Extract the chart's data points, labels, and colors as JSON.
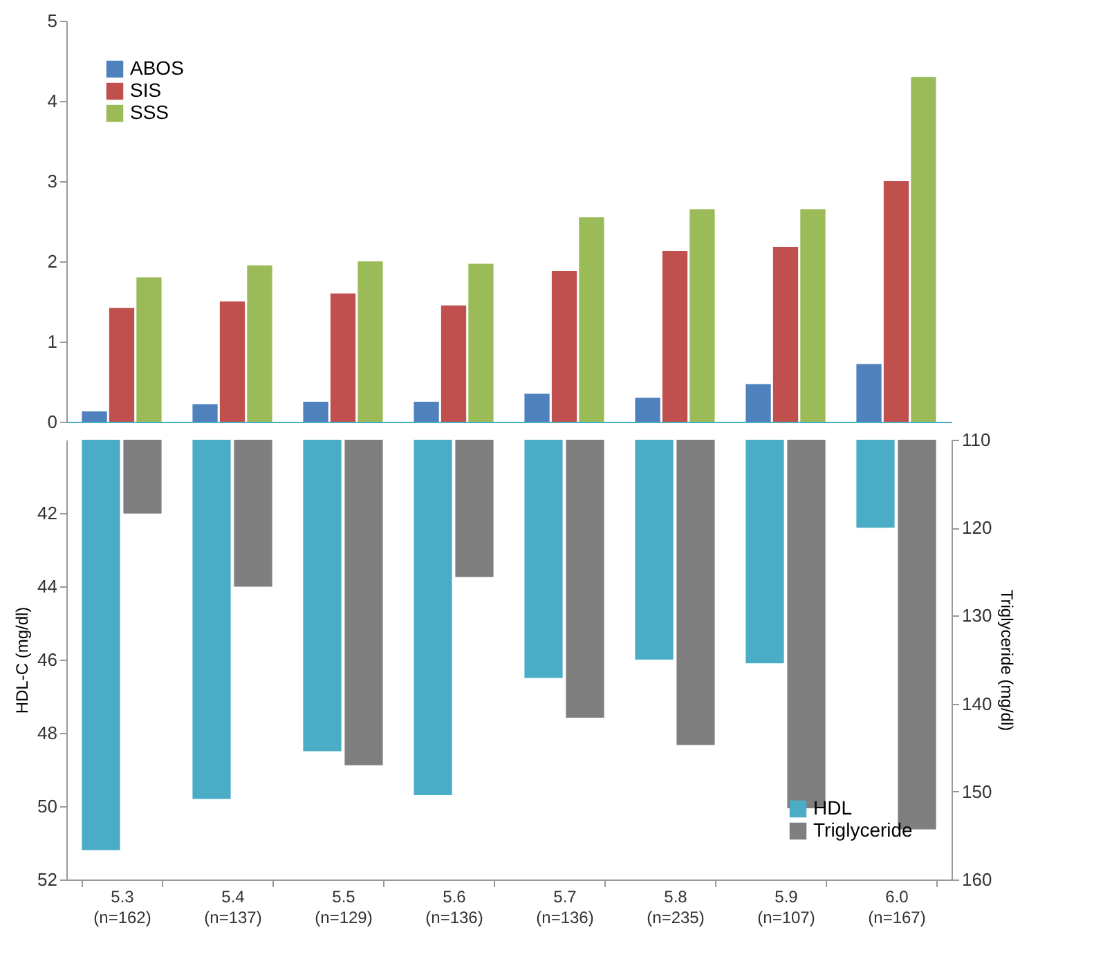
{
  "chart_data": [
    {
      "type": "bar",
      "categories": [
        "5.3\n(n=162)",
        "5.4\n(n=137)",
        "5.5\n(n=129)",
        "5.6\n(n=136)",
        "5.7\n(n=136)",
        "5.8\n(n=235)",
        "5.9\n(n=107)",
        "6.0\n(n=167)"
      ],
      "series": [
        {
          "name": "ABOS",
          "color": "#4f81bd",
          "values": [
            0.13,
            0.22,
            0.25,
            0.25,
            0.35,
            0.3,
            0.47,
            0.72
          ]
        },
        {
          "name": "SIS",
          "color": "#c0504d",
          "values": [
            1.42,
            1.5,
            1.6,
            1.45,
            1.88,
            2.13,
            2.18,
            3.0
          ]
        },
        {
          "name": "SSS",
          "color": "#9bbb59",
          "values": [
            1.8,
            1.95,
            2.0,
            1.97,
            2.55,
            2.65,
            2.65,
            4.3
          ]
        }
      ],
      "ylim": [
        0,
        5
      ],
      "yticks": [
        0,
        1,
        2,
        3,
        4,
        5
      ],
      "legend": "top left",
      "tick_labels": "y"
    },
    {
      "type": "bar",
      "categories": [
        "5.3\n(n=162)",
        "5.4\n(n=137)",
        "5.5\n(n=129)",
        "5.6\n(n=136)",
        "5.7\n(n=136)",
        "5.8\n(n=235)",
        "5.9\n(n=107)",
        "6.0\n(n=167)"
      ],
      "series": [
        {
          "name": "HDL",
          "color": "#4bacc6",
          "values": [
            51.2,
            49.8,
            48.5,
            49.7,
            46.5,
            46.0,
            46.1,
            42.4
          ]
        },
        {
          "name": "Triglyceride",
          "color": "#7f7f7f",
          "axis": "y2",
          "values": [
            118.4,
            126.7,
            147,
            125.6,
            141.6,
            144.7,
            151.9,
            154.3
          ]
        }
      ],
      "ylabel": "HDL-C (mg/dl)",
      "y2label": "Triglyceride (mg/dl)",
      "ylim": [
        52,
        40
      ],
      "yticks": [
        42,
        44,
        46,
        48,
        50,
        52
      ],
      "y2lim": [
        160,
        110
      ],
      "y2ticks": [
        110,
        120,
        130,
        140,
        150,
        160
      ],
      "legend": "bottom right"
    }
  ]
}
